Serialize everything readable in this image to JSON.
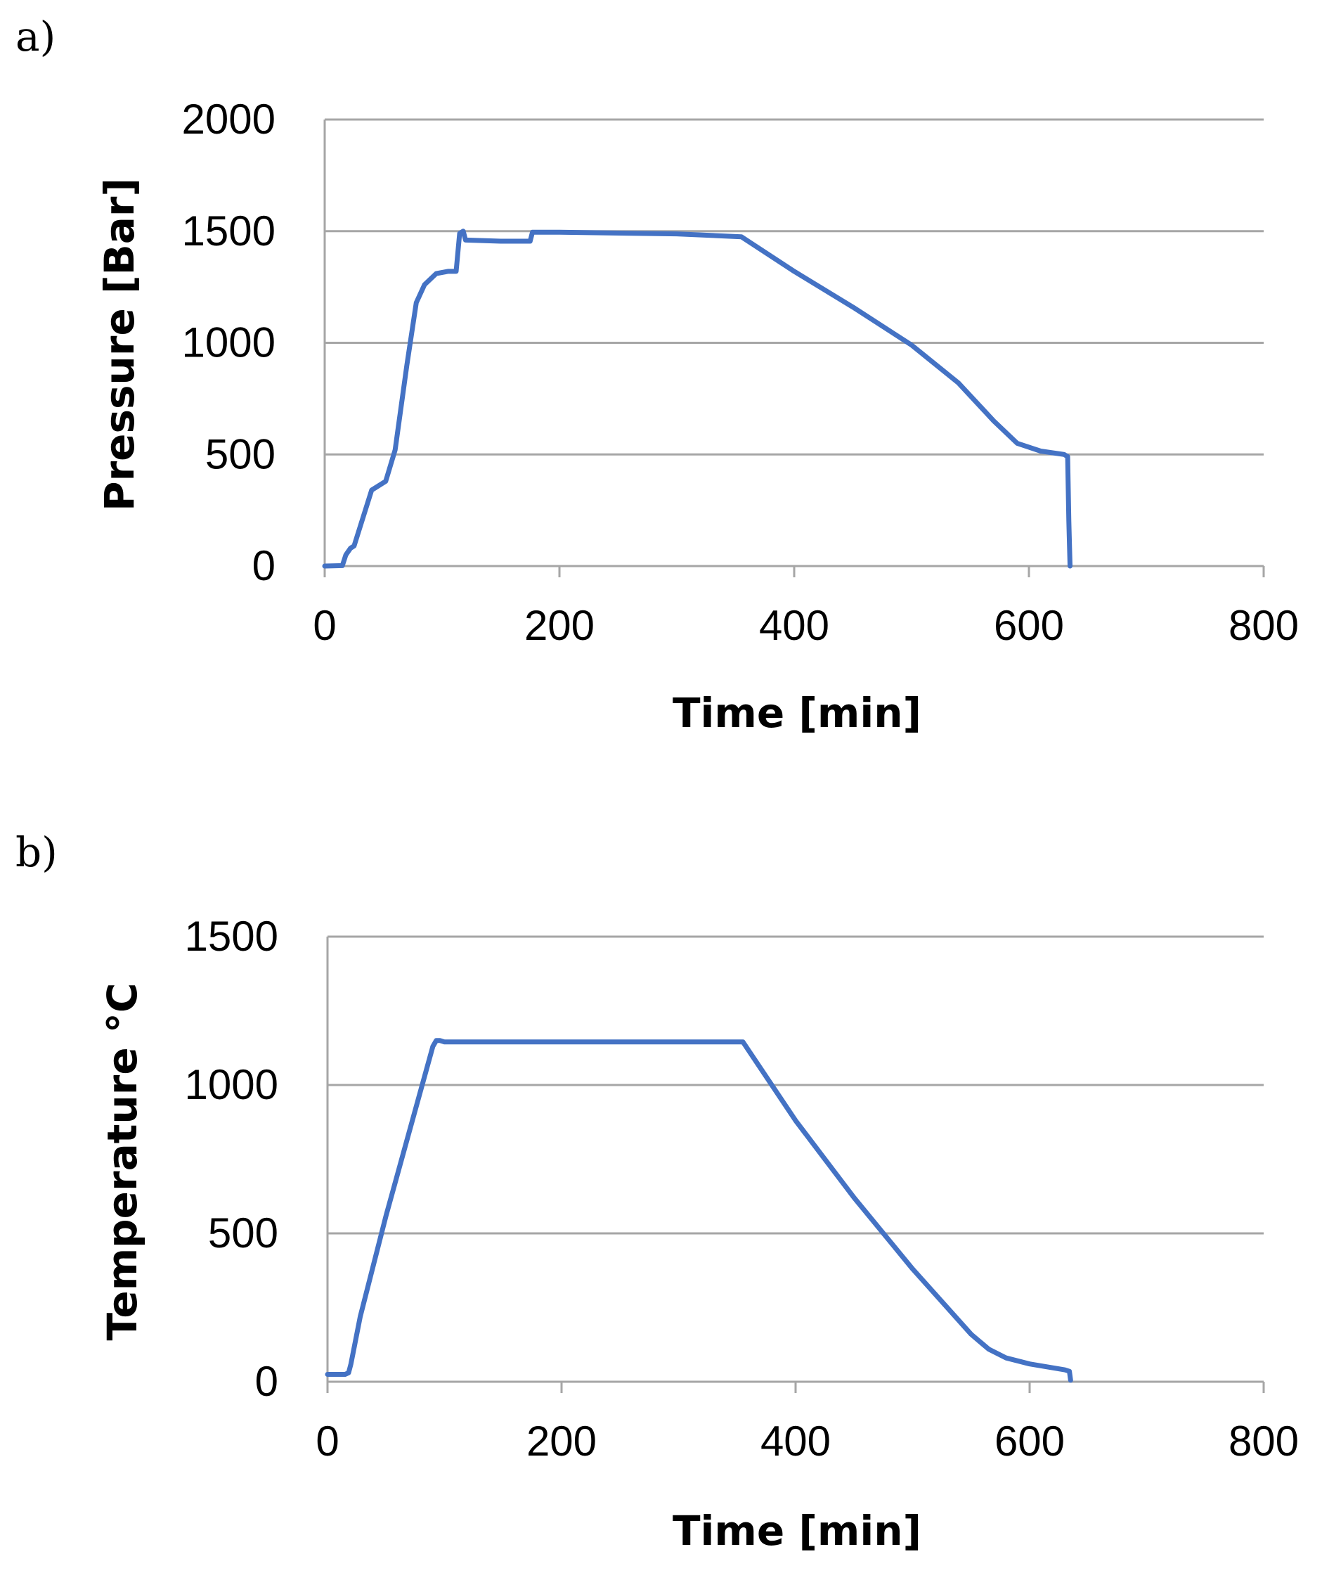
{
  "colors": {
    "series": "#4472C4",
    "grid": "#A6A6A6",
    "axis": "#A6A6A6"
  },
  "chart_data": [
    {
      "panel_label": "a)",
      "type": "line",
      "title": "",
      "xlabel": "Time [min]",
      "ylabel": "Pressure  [Bar]",
      "xlim": [
        0,
        800
      ],
      "ylim": [
        0,
        2000
      ],
      "xticks": [
        0,
        200,
        400,
        600,
        800
      ],
      "yticks": [
        0,
        500,
        1000,
        1500,
        2000
      ],
      "grid": "horizontal",
      "series": [
        {
          "name": "Pressure",
          "x": [
            0,
            15,
            18,
            22,
            25,
            40,
            52,
            60,
            70,
            78,
            85,
            95,
            105,
            112,
            115,
            118,
            120,
            150,
            175,
            177,
            200,
            300,
            355,
            400,
            450,
            500,
            540,
            570,
            590,
            610,
            630,
            633,
            634,
            635
          ],
          "y": [
            0,
            2,
            50,
            80,
            90,
            340,
            380,
            520,
            900,
            1180,
            1260,
            1310,
            1320,
            1320,
            1490,
            1500,
            1460,
            1455,
            1455,
            1495,
            1495,
            1488,
            1475,
            1320,
            1160,
            990,
            820,
            650,
            550,
            515,
            500,
            490,
            200,
            0
          ]
        }
      ]
    },
    {
      "panel_label": "b)",
      "type": "line",
      "title": "",
      "xlabel": "Time [min]",
      "ylabel": "Temperature °C",
      "xlim": [
        0,
        800
      ],
      "ylim": [
        0,
        1500
      ],
      "xticks": [
        0,
        200,
        400,
        600,
        800
      ],
      "yticks": [
        0,
        500,
        1000,
        1500
      ],
      "grid": "horizontal",
      "series": [
        {
          "name": "Temperature",
          "x": [
            0,
            15,
            18,
            20,
            28,
            50,
            90,
            93,
            96,
            100,
            200,
            300,
            355,
            400,
            450,
            500,
            550,
            565,
            580,
            600,
            630,
            634,
            635
          ],
          "y": [
            25,
            25,
            30,
            60,
            220,
            560,
            1130,
            1150,
            1150,
            1145,
            1145,
            1145,
            1145,
            880,
            620,
            380,
            160,
            110,
            80,
            60,
            40,
            35,
            5
          ]
        }
      ]
    }
  ]
}
